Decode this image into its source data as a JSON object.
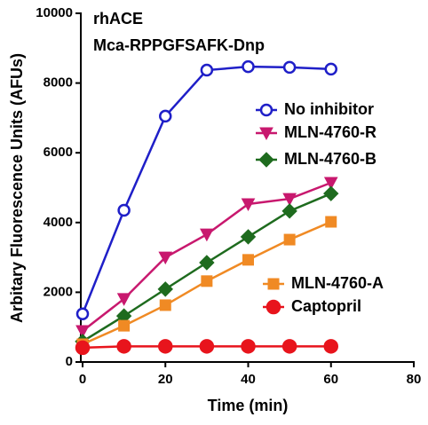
{
  "chart_data": {
    "type": "line",
    "annotations": [
      "rhACE",
      "Mca-RPPGFSAFK-Dnp"
    ],
    "x_label": "Time (min)",
    "y_label": "Arbitary Fluorescence Units (AFUs)",
    "x": [
      0,
      10,
      20,
      30,
      40,
      50,
      60
    ],
    "xlim": [
      0,
      80
    ],
    "xticks": [
      0,
      20,
      40,
      60,
      80
    ],
    "ylim": [
      0,
      10000
    ],
    "yticks": [
      0,
      2000,
      4000,
      6000,
      8000,
      10000
    ],
    "series": [
      {
        "name": "No inhibitor",
        "color": "#1f1fc8",
        "marker": "circle-open",
        "values": [
          1380,
          4350,
          7050,
          8370,
          8470,
          8450,
          8400
        ]
      },
      {
        "name": "MLN-4760-R",
        "color": "#c8186e",
        "marker": "triangle-down",
        "values": [
          890,
          1810,
          3000,
          3660,
          4530,
          4680,
          5140
        ]
      },
      {
        "name": "MLN-4760-B",
        "color": "#1e6b1e",
        "marker": "diamond",
        "values": [
          590,
          1320,
          2090,
          2850,
          3590,
          4330,
          4830
        ]
      },
      {
        "name": "MLN-4760-A",
        "color": "#f08a24",
        "marker": "square",
        "values": [
          510,
          1040,
          1630,
          2320,
          2930,
          3510,
          4020
        ]
      },
      {
        "name": "Captopril",
        "color": "#e8141c",
        "marker": "circle",
        "values": [
          410,
          450,
          450,
          450,
          450,
          450,
          450
        ]
      }
    ]
  }
}
